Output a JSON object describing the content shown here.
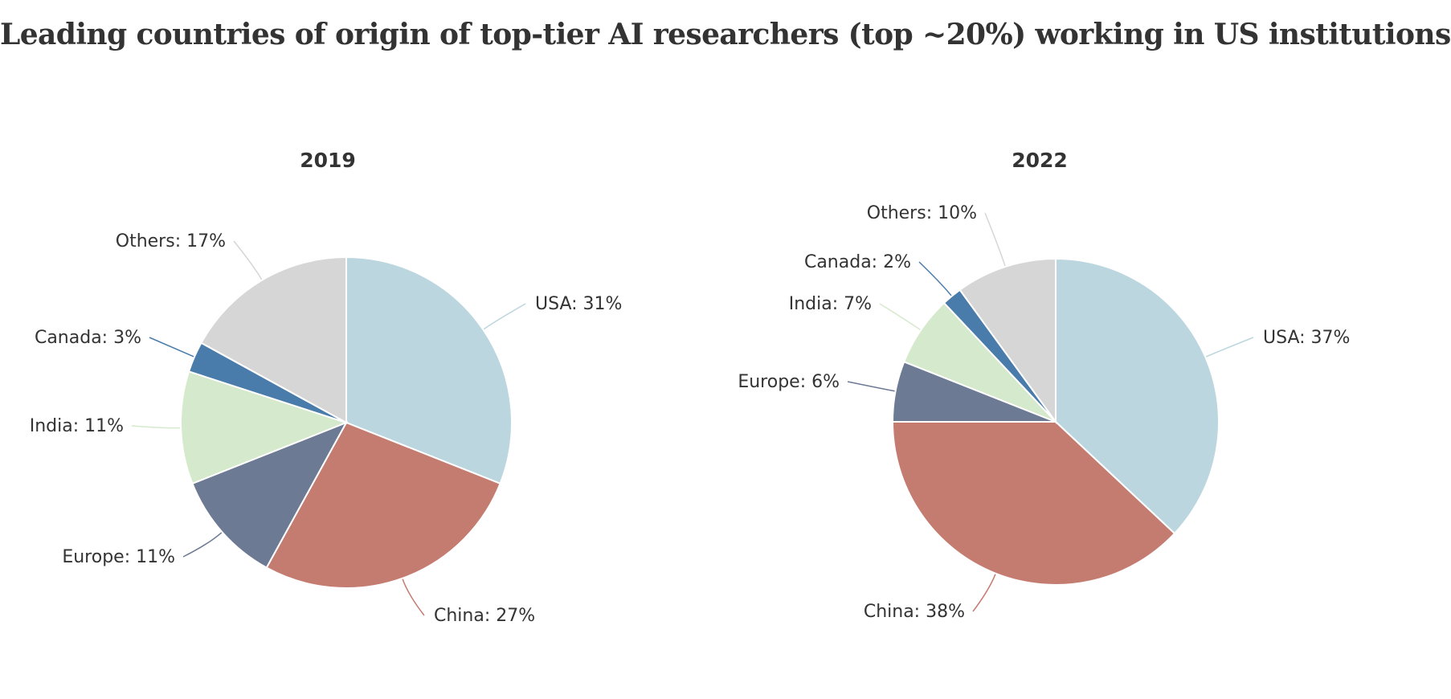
{
  "title": "Leading countries of origin of top-tier AI researchers (top ~20%) working in US institutions",
  "chart_data": [
    {
      "type": "pie",
      "title": "2019",
      "categories": [
        "USA",
        "China",
        "Europe",
        "India",
        "Canada",
        "Others"
      ],
      "values": [
        31,
        27,
        11,
        11,
        3,
        17
      ],
      "labels": [
        "USA: 31%",
        "China: 27%",
        "Europe: 11%",
        "India: 11%",
        "Canada: 3%",
        "Others: 17%"
      ],
      "colors": [
        "#bcd6df",
        "#c47b70",
        "#6d7a94",
        "#d5e9cc",
        "#4a7cab",
        "#d6d6d6"
      ]
    },
    {
      "type": "pie",
      "title": "2022",
      "categories": [
        "USA",
        "China",
        "Europe",
        "India",
        "Canada",
        "Others"
      ],
      "values": [
        37,
        38,
        6,
        7,
        2,
        10
      ],
      "labels": [
        "USA: 37%",
        "China: 38%",
        "Europe: 6%",
        "India: 7%",
        "Canada: 2%",
        "Others: 10%"
      ],
      "colors": [
        "#bcd6df",
        "#c47b70",
        "#6d7a94",
        "#d5e9cc",
        "#4a7cab",
        "#d6d6d6"
      ]
    }
  ]
}
